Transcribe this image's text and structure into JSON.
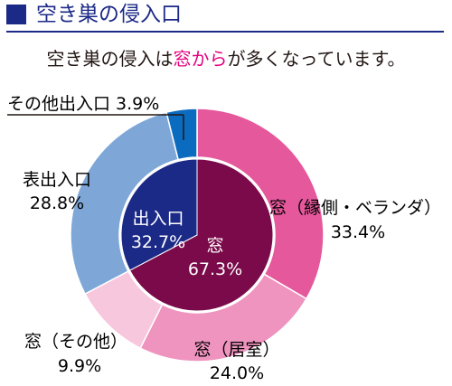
{
  "header": {
    "title": "空き巣の侵入口"
  },
  "subtitle": {
    "prefix": "空き巣の侵入は",
    "highlight": "窓から",
    "suffix": "が多くなっています。"
  },
  "colors": {
    "header_blue": "#1c2a87",
    "highlight": "#e4007f",
    "window_inner": "#7a0a4a",
    "entrance_inner": "#1c2a87",
    "veranda": "#e5589c",
    "kyoshitsu": "#ef93bf",
    "window_other": "#f7c7de",
    "front_entrance": "#7ea7d8",
    "other_entrance": "#0b6bbf"
  },
  "chart_data": {
    "type": "pie",
    "title": "空き巣の侵入口",
    "inner": [
      {
        "name": "窓",
        "value": 67.3,
        "label": "67.3%",
        "color": "#7a0a4a"
      },
      {
        "name": "出入口",
        "value": 32.7,
        "label": "32.7%",
        "color": "#1c2a87"
      }
    ],
    "outer": [
      {
        "name": "窓（縁側・ベランダ）",
        "value": 33.4,
        "label": "33.4%",
        "color": "#e5589c"
      },
      {
        "name": "窓（居室）",
        "value": 24.0,
        "label": "24.0%",
        "color": "#ef93bf"
      },
      {
        "name": "窓（その他）",
        "value": 9.9,
        "label": "9.9%",
        "color": "#f7c7de"
      },
      {
        "name": "表出入口",
        "value": 28.8,
        "label": "28.8%",
        "color": "#7ea7d8"
      },
      {
        "name": "その他出入口",
        "value": 3.9,
        "label": "3.9%",
        "color": "#0b6bbf"
      }
    ]
  }
}
